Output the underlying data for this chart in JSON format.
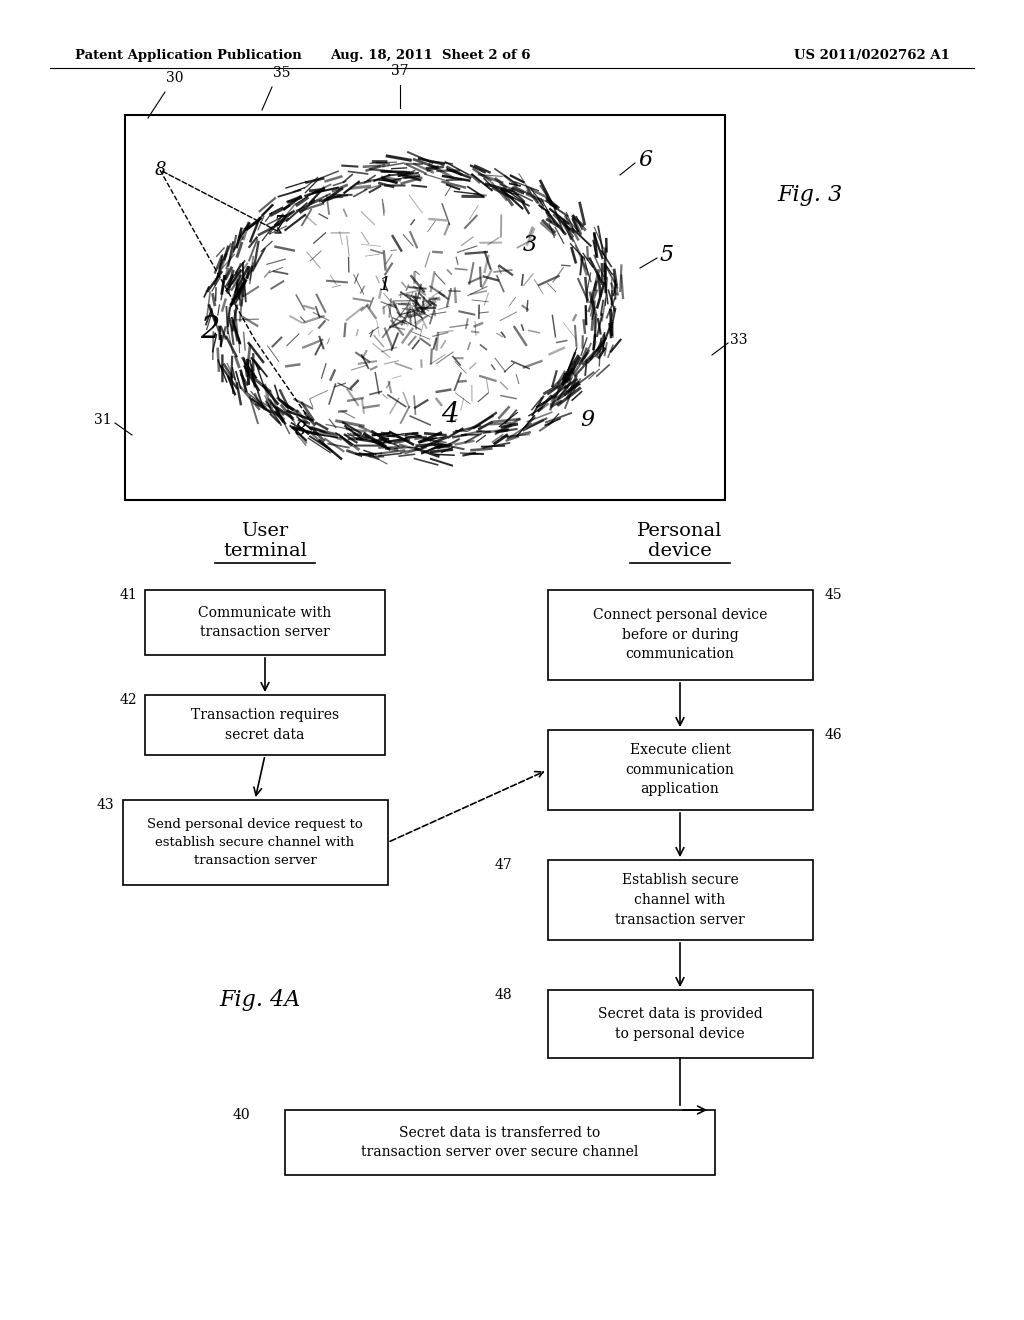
{
  "bg_color": "#ffffff",
  "header_left": "Patent Application Publication",
  "header_mid": "Aug. 18, 2011  Sheet 2 of 6",
  "header_right": "US 2011/0202762 A1",
  "fig3_label": "Fig. 3",
  "fig4a_label": "Fig. 4A"
}
